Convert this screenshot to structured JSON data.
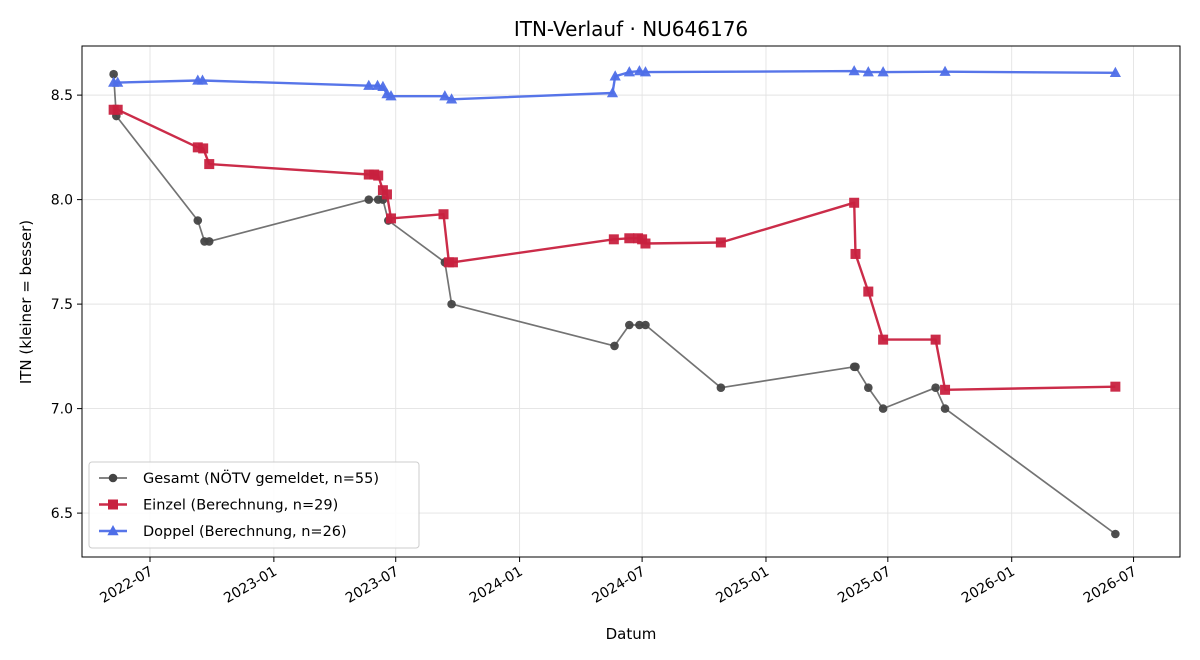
{
  "chart_data": {
    "type": "line",
    "title": "ITN-Verlauf · NU646176",
    "xlabel": "Datum",
    "ylabel": "ITN  (kleiner = besser)",
    "grid": true,
    "legend_position": "lower-left",
    "xlim": [
      "2022-03-22",
      "2026-09-08"
    ],
    "ylim": [
      6.29,
      8.735
    ],
    "x_ticks": [
      "2022-07-01",
      "2023-01-01",
      "2023-07-01",
      "2024-01-01",
      "2024-07-01",
      "2025-01-01",
      "2025-07-01",
      "2026-01-01",
      "2026-07-01"
    ],
    "x_tick_labels": [
      "2022-07",
      "2023-01",
      "2023-07",
      "2024-01",
      "2024-07",
      "2025-01",
      "2025-07",
      "2026-01",
      "2026-07"
    ],
    "y_ticks": [
      6.5,
      7.0,
      7.5,
      8.0,
      8.5
    ],
    "y_tick_labels": [
      "6.5",
      "7.0",
      "7.5",
      "8.0",
      "8.5"
    ],
    "series": [
      {
        "name": "Gesamt (NÖTV gemeldet, n=55)",
        "color": "#444444",
        "marker": "circle",
        "points": [
          [
            "2022-05-08",
            8.6
          ],
          [
            "2022-05-12",
            8.4
          ],
          [
            "2022-09-10",
            7.9
          ],
          [
            "2022-09-20",
            7.8
          ],
          [
            "2022-09-27",
            7.8
          ],
          [
            "2023-05-22",
            8.0
          ],
          [
            "2023-06-05",
            8.0
          ],
          [
            "2023-06-12",
            8.0
          ],
          [
            "2023-06-20",
            7.9
          ],
          [
            "2023-09-12",
            7.7
          ],
          [
            "2023-09-22",
            7.5
          ],
          [
            "2024-05-21",
            7.3
          ],
          [
            "2024-06-12",
            7.4
          ],
          [
            "2024-06-27",
            7.4
          ],
          [
            "2024-07-06",
            7.4
          ],
          [
            "2024-10-26",
            7.1
          ],
          [
            "2025-05-12",
            7.2
          ],
          [
            "2025-05-14",
            7.2
          ],
          [
            "2025-06-02",
            7.1
          ],
          [
            "2025-06-24",
            7.0
          ],
          [
            "2025-09-10",
            7.1
          ],
          [
            "2025-09-24",
            7.0
          ],
          [
            "2026-06-04",
            6.4
          ]
        ]
      },
      {
        "name": "Einzel (Berechnung, n=29)",
        "color": "#c8213f",
        "marker": "square",
        "points": [
          [
            "2022-05-08",
            8.43
          ],
          [
            "2022-05-14",
            8.43
          ],
          [
            "2022-09-10",
            8.25
          ],
          [
            "2022-09-18",
            8.245
          ],
          [
            "2022-09-27",
            8.17
          ],
          [
            "2023-05-22",
            8.12
          ],
          [
            "2023-05-30",
            8.12
          ],
          [
            "2023-06-05",
            8.115
          ],
          [
            "2023-06-12",
            8.045
          ],
          [
            "2023-06-18",
            8.025
          ],
          [
            "2023-06-24",
            7.91
          ],
          [
            "2023-09-10",
            7.93
          ],
          [
            "2023-09-18",
            7.7
          ],
          [
            "2023-09-24",
            7.7
          ],
          [
            "2024-05-20",
            7.81
          ],
          [
            "2024-06-12",
            7.815
          ],
          [
            "2024-06-25",
            7.815
          ],
          [
            "2024-07-01",
            7.81
          ],
          [
            "2024-07-06",
            7.79
          ],
          [
            "2024-10-26",
            7.795
          ],
          [
            "2025-05-12",
            7.985
          ],
          [
            "2025-05-14",
            7.74
          ],
          [
            "2025-06-02",
            7.56
          ],
          [
            "2025-06-24",
            7.33
          ],
          [
            "2025-09-10",
            7.33
          ],
          [
            "2025-09-24",
            7.09
          ],
          [
            "2026-06-04",
            7.105
          ]
        ]
      },
      {
        "name": "Doppel (Berechnung, n=26)",
        "color": "#4e6ee8",
        "marker": "triangle",
        "points": [
          [
            "2022-05-08",
            8.56
          ],
          [
            "2022-05-14",
            8.56
          ],
          [
            "2022-09-10",
            8.57
          ],
          [
            "2022-09-17",
            8.57
          ],
          [
            "2023-05-22",
            8.545
          ],
          [
            "2023-06-04",
            8.545
          ],
          [
            "2023-06-12",
            8.54
          ],
          [
            "2023-06-18",
            8.505
          ],
          [
            "2023-06-24",
            8.495
          ],
          [
            "2023-09-12",
            8.495
          ],
          [
            "2023-09-22",
            8.48
          ],
          [
            "2024-05-18",
            8.51
          ],
          [
            "2024-05-22",
            8.59
          ],
          [
            "2024-06-12",
            8.61
          ],
          [
            "2024-06-27",
            8.615
          ],
          [
            "2024-07-06",
            8.61
          ],
          [
            "2025-05-12",
            8.615
          ],
          [
            "2025-06-02",
            8.61
          ],
          [
            "2025-06-24",
            8.61
          ],
          [
            "2025-09-24",
            8.612
          ],
          [
            "2026-06-04",
            8.607
          ]
        ]
      }
    ]
  }
}
